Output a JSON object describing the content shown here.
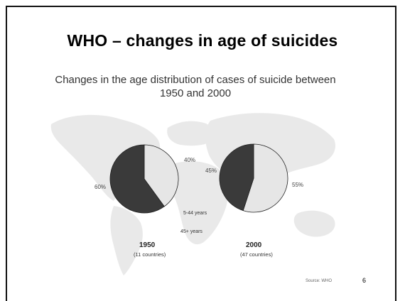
{
  "slide": {
    "title": "WHO – changes in age of suicides",
    "number": "6",
    "source": "Source: WHO"
  },
  "chart_data": {
    "type": "pie",
    "title": "Changes in the age distribution of cases of suicide between 1950 and 2000",
    "legend": [
      "5-44 years",
      "45+ years"
    ],
    "colors": {
      "5-44 years": "#e6e6e6",
      "45+ years": "#3a3a3a"
    },
    "pies": [
      {
        "year": "1950",
        "subtitle": "(11 countries)",
        "slices": [
          {
            "name": "5-44 years",
            "value": 40,
            "label": "40%"
          },
          {
            "name": "45+ years",
            "value": 60,
            "label": "60%"
          }
        ]
      },
      {
        "year": "2000",
        "subtitle": "(47 countries)",
        "slices": [
          {
            "name": "5-44 years",
            "value": 55,
            "label": "55%"
          },
          {
            "name": "45+ years",
            "value": 45,
            "label": "45%"
          }
        ]
      }
    ]
  }
}
